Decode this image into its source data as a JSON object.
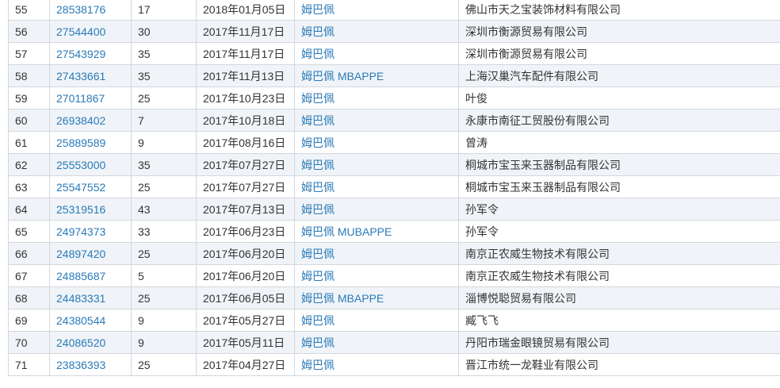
{
  "rows": [
    {
      "no": "55",
      "reg": "28538176",
      "cls": "17",
      "date": "2018年01月05日",
      "mark": "姆巴佩",
      "applicant": "佛山市天之宝装饰材料有限公司"
    },
    {
      "no": "56",
      "reg": "27544400",
      "cls": "30",
      "date": "2017年11月17日",
      "mark": "姆巴佩",
      "applicant": "深圳市衡源贸易有限公司"
    },
    {
      "no": "57",
      "reg": "27543929",
      "cls": "35",
      "date": "2017年11月17日",
      "mark": "姆巴佩",
      "applicant": "深圳市衡源贸易有限公司"
    },
    {
      "no": "58",
      "reg": "27433661",
      "cls": "35",
      "date": "2017年11月13日",
      "mark": "姆巴佩 MBAPPE",
      "applicant": "上海汉巢汽车配件有限公司"
    },
    {
      "no": "59",
      "reg": "27011867",
      "cls": "25",
      "date": "2017年10月23日",
      "mark": "姆巴佩",
      "applicant": "叶俊"
    },
    {
      "no": "60",
      "reg": "26938402",
      "cls": "7",
      "date": "2017年10月18日",
      "mark": "姆巴佩",
      "applicant": "永康市南征工贸股份有限公司"
    },
    {
      "no": "61",
      "reg": "25889589",
      "cls": "9",
      "date": "2017年08月16日",
      "mark": "姆巴佩",
      "applicant": "曾涛"
    },
    {
      "no": "62",
      "reg": "25553000",
      "cls": "35",
      "date": "2017年07月27日",
      "mark": "姆巴佩",
      "applicant": "桐城市宝玉来玉器制品有限公司"
    },
    {
      "no": "63",
      "reg": "25547552",
      "cls": "25",
      "date": "2017年07月27日",
      "mark": "姆巴佩",
      "applicant": "桐城市宝玉来玉器制品有限公司"
    },
    {
      "no": "64",
      "reg": "25319516",
      "cls": "43",
      "date": "2017年07月13日",
      "mark": "姆巴佩",
      "applicant": "孙军令"
    },
    {
      "no": "65",
      "reg": "24974373",
      "cls": "33",
      "date": "2017年06月23日",
      "mark": "姆巴佩 MUBAPPE",
      "applicant": "孙军令"
    },
    {
      "no": "66",
      "reg": "24897420",
      "cls": "25",
      "date": "2017年06月20日",
      "mark": "姆巴佩",
      "applicant": "南京正农威生物技术有限公司"
    },
    {
      "no": "67",
      "reg": "24885687",
      "cls": "5",
      "date": "2017年06月20日",
      "mark": "姆巴佩",
      "applicant": "南京正农威生物技术有限公司"
    },
    {
      "no": "68",
      "reg": "24483331",
      "cls": "25",
      "date": "2017年06月05日",
      "mark": "姆巴佩 MBAPPE",
      "applicant": "淄博悦聪贸易有限公司"
    },
    {
      "no": "69",
      "reg": "24380544",
      "cls": "9",
      "date": "2017年05月27日",
      "mark": "姆巴佩",
      "applicant": "臧飞飞"
    },
    {
      "no": "70",
      "reg": "24086520",
      "cls": "9",
      "date": "2017年05月11日",
      "mark": "姆巴佩",
      "applicant": "丹阳市瑞金眼镜贸易有限公司"
    },
    {
      "no": "71",
      "reg": "23836393",
      "cls": "25",
      "date": "2017年04月27日",
      "mark": "姆巴佩",
      "applicant": "晋江市统一龙鞋业有限公司"
    }
  ],
  "colors": {
    "link": "#2a7ab8",
    "stripe": "#f0f4f8",
    "border": "#d3d7dc"
  }
}
